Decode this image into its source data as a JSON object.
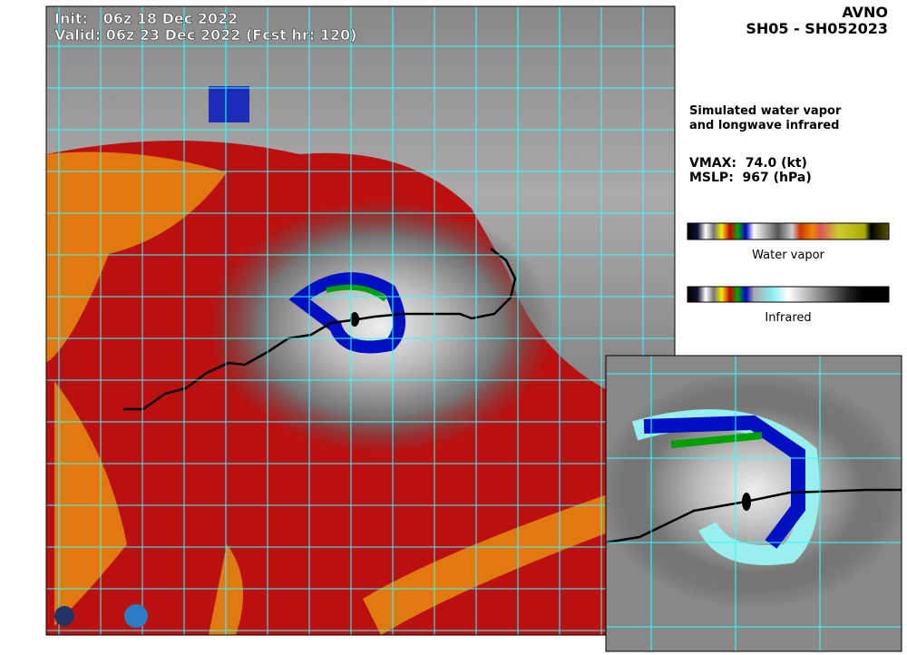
{
  "header": {
    "init": "Init:   06z 18 Dec 2022",
    "valid": "Valid: 06z 23 Dec 2022 (Fcst hr: 120)",
    "model": "AVNO",
    "storm_id": "SH05 - SH052023"
  },
  "description": [
    "Simulated water vapor",
    "and longwave infrared"
  ],
  "vmax": "VMAX:  74.0 (kt)",
  "mslp": "MSLP:  967 (hPa)",
  "colorbars": [
    {
      "label": "Water vapor"
    },
    {
      "label": "Infrared"
    }
  ]
}
